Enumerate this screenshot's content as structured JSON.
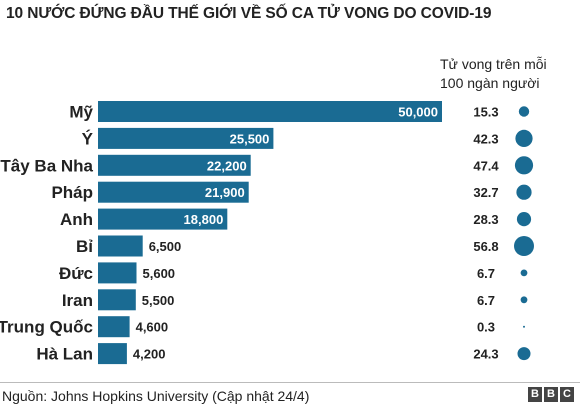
{
  "title": "10 NƯỚC ĐỨNG ĐẦU THẾ GIỚI VỀ SỐ CA TỬ VONG DO COVID-19",
  "rate_header": [
    "Tử vong trên mỗi",
    "100 ngàn người"
  ],
  "source": "Nguồn: Johns Hopkins University (Cập nhật 24/4)",
  "logo": [
    "B",
    "B",
    "C"
  ],
  "colors": {
    "bar": "#1a6b93",
    "dot": "#1a6b93",
    "text": "#222222",
    "bar_label_inside": "#ffffff"
  },
  "chart_data": {
    "type": "bar",
    "orientation": "horizontal",
    "categories": [
      "Mỹ",
      "Ý",
      "Tây Ba Nha",
      "Pháp",
      "Anh",
      "Bỉ",
      "Đức",
      "Iran",
      "Trung Quốc",
      "Hà Lan"
    ],
    "values": [
      50000,
      25500,
      22200,
      21900,
      18800,
      6500,
      5600,
      5500,
      4600,
      4200
    ],
    "value_labels": [
      "50,000",
      "25,500",
      "22,200",
      "21,900",
      "18,800",
      "6,500",
      "5,600",
      "5,500",
      "4,600",
      "4,200"
    ],
    "deaths_per_100k": [
      15.3,
      42.3,
      47.4,
      32.7,
      28.3,
      56.8,
      6.7,
      6.7,
      0.3,
      24.3
    ],
    "deaths_per_100k_labels": [
      "15.3",
      "42.3",
      "47.4",
      "32.7",
      "28.3",
      "56.8",
      "6.7",
      "6.7",
      "0.3",
      "24.3"
    ],
    "xlim": [
      0,
      50000
    ],
    "grid": false,
    "legend": "none"
  }
}
